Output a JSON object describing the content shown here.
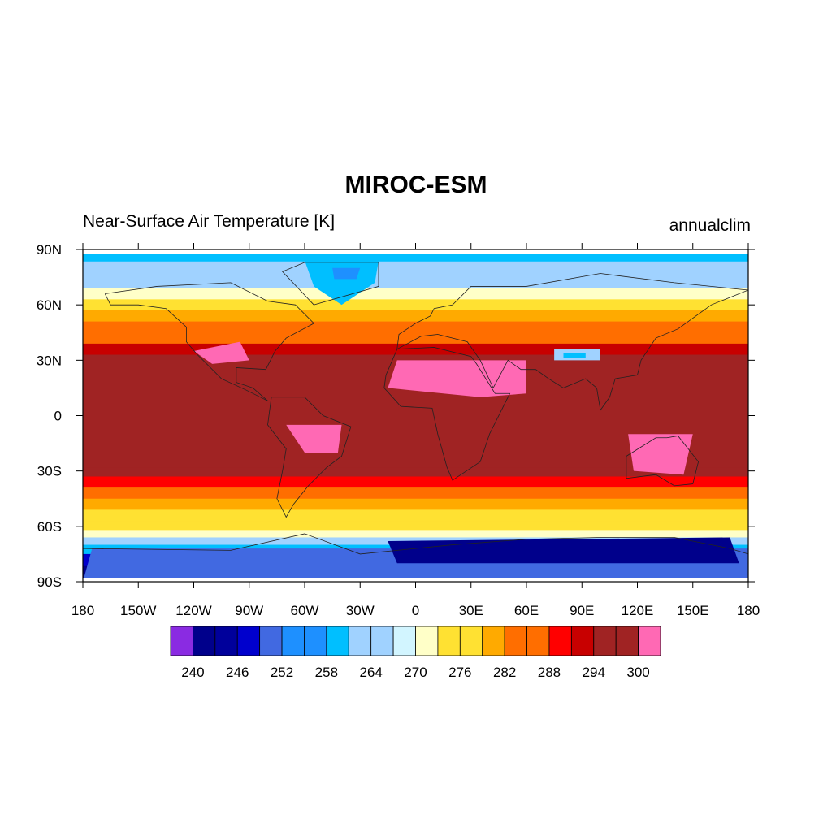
{
  "title": "MIROC-ESM",
  "left_string": "Near-Surface Air Temperature [K]",
  "right_string": "annualclim",
  "colors": {
    "levels": [
      "#8a2be2",
      "#00008b",
      "#00009b",
      "#0000cd",
      "#4169e1",
      "#1e90ff",
      "#1e90ff",
      "#00bfff",
      "#a0d2ff",
      "#a0d2ff",
      "#d2f5ff",
      "#ffffc8",
      "#ffe132",
      "#ffe132",
      "#ffaa00",
      "#ff6e00",
      "#ff6e00",
      "#ff0000",
      "#c80000",
      "#a02323",
      "#a02323",
      "#ff69b4"
    ]
  },
  "chart_data": {
    "type": "heatmap",
    "projection": "cylindrical-equidistant",
    "xlim": [
      -180,
      180
    ],
    "ylim": [
      -90,
      90
    ],
    "x_ticks": [
      {
        "value": -180,
        "label": "180"
      },
      {
        "value": -150,
        "label": "150W"
      },
      {
        "value": -120,
        "label": "120W"
      },
      {
        "value": -90,
        "label": "90W"
      },
      {
        "value": -60,
        "label": "60W"
      },
      {
        "value": -30,
        "label": "30W"
      },
      {
        "value": 0,
        "label": "0"
      },
      {
        "value": 30,
        "label": "30E"
      },
      {
        "value": 60,
        "label": "60E"
      },
      {
        "value": 90,
        "label": "90E"
      },
      {
        "value": 120,
        "label": "120E"
      },
      {
        "value": 150,
        "label": "150E"
      },
      {
        "value": 180,
        "label": "180"
      }
    ],
    "y_ticks": [
      {
        "value": 90,
        "label": "90N"
      },
      {
        "value": 60,
        "label": "60N"
      },
      {
        "value": 30,
        "label": "30N"
      },
      {
        "value": 0,
        "label": "0"
      },
      {
        "value": -30,
        "label": "30S"
      },
      {
        "value": -60,
        "label": "60S"
      },
      {
        "value": -90,
        "label": "90S"
      }
    ],
    "contour_levels": [
      240,
      243,
      246,
      249,
      252,
      255,
      258,
      261,
      264,
      267,
      270,
      273,
      276,
      279,
      282,
      285,
      288,
      291,
      294,
      297,
      300
    ],
    "colorbar_labels": [
      {
        "value": 240,
        "label": "240"
      },
      {
        "value": 246,
        "label": "246"
      },
      {
        "value": 252,
        "label": "252"
      },
      {
        "value": 258,
        "label": "258"
      },
      {
        "value": 264,
        "label": "264"
      },
      {
        "value": 270,
        "label": "270"
      },
      {
        "value": 276,
        "label": "276"
      },
      {
        "value": 282,
        "label": "282"
      },
      {
        "value": 288,
        "label": "288"
      },
      {
        "value": 294,
        "label": "294"
      },
      {
        "value": 300,
        "label": "300"
      }
    ],
    "zonal_profile": [
      {
        "lat": 87,
        "value": 258
      },
      {
        "lat": 80,
        "value": 262
      },
      {
        "lat": 72,
        "value": 266
      },
      {
        "lat": 66,
        "value": 272
      },
      {
        "lat": 60,
        "value": 276
      },
      {
        "lat": 54,
        "value": 279
      },
      {
        "lat": 48,
        "value": 282
      },
      {
        "lat": 42,
        "value": 286
      },
      {
        "lat": 36,
        "value": 292
      },
      {
        "lat": 30,
        "value": 296
      },
      {
        "lat": 0,
        "value": 298
      },
      {
        "lat": -26,
        "value": 297
      },
      {
        "lat": -30,
        "value": 294
      },
      {
        "lat": -36,
        "value": 290
      },
      {
        "lat": -42,
        "value": 285
      },
      {
        "lat": -48,
        "value": 281
      },
      {
        "lat": -54,
        "value": 277
      },
      {
        "lat": -60,
        "value": 274
      },
      {
        "lat": -64,
        "value": 270
      },
      {
        "lat": -68,
        "value": 265
      },
      {
        "lat": -72,
        "value": 260
      },
      {
        "lat": -78,
        "value": 248
      },
      {
        "lat": -85,
        "value": 240
      }
    ]
  }
}
